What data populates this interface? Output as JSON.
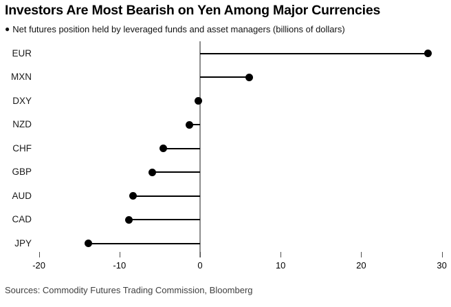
{
  "header": {
    "title": "Investors Are Most Bearish on Yen Among Major Currencies",
    "subtitle_bullet": "●",
    "subtitle": "Net futures position held by leveraged funds and asset managers (billions of dollars)"
  },
  "chart_data": {
    "type": "bar",
    "variant": "horizontal-lollipop",
    "title": "Investors Are Most Bearish on Yen Among Major Currencies",
    "subtitle": "Net futures position held by leveraged funds and asset managers (billions of dollars)",
    "categories": [
      "EUR",
      "MXN",
      "DXY",
      "NZD",
      "CHF",
      "GBP",
      "AUD",
      "CAD",
      "JPY"
    ],
    "values": [
      28.3,
      6.1,
      -0.2,
      -1.3,
      -4.6,
      -5.9,
      -8.3,
      -8.8,
      -13.9
    ],
    "xlabel": "",
    "ylabel": "",
    "unit": "billions of dollars",
    "x_ticks": [
      -20,
      -10,
      0,
      10,
      20,
      30
    ],
    "xlim": [
      -20,
      30
    ],
    "grid": false,
    "legend": false,
    "colors": {
      "dot": "#000000",
      "stem": "#000000",
      "zero_line": "#8c8c8c",
      "tick": "#4d4d4d",
      "tick_label": "#000000"
    }
  },
  "footer": {
    "sources": "Sources: Commodity Futures Trading Commission, Bloomberg"
  }
}
